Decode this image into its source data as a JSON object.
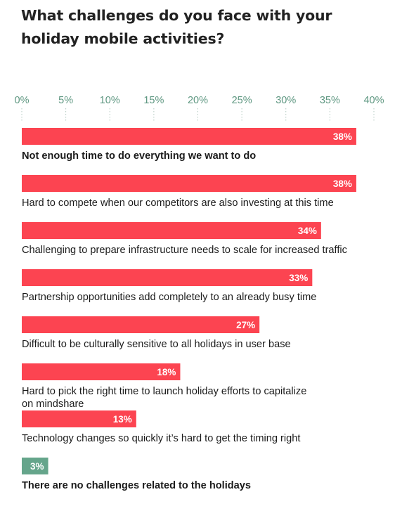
{
  "chart_data": {
    "type": "bar",
    "orientation": "horizontal",
    "title": "What challenges do you face with your holiday mobile activities?",
    "x_ticks": [
      "0%",
      "5%",
      "10%",
      "15%",
      "20%",
      "25%",
      "30%",
      "35%",
      "40%"
    ],
    "xlim": [
      0,
      40
    ],
    "grid": false,
    "colors": {
      "bar": "#fc4451",
      "bar_highlight": "#65a58b",
      "tick_text": "#5e9781",
      "tick_mark": "#b3c9c0",
      "title": "#222222",
      "label": "#1b1b1b"
    },
    "categories": [
      {
        "label": "Not enough time to do everything we want to do",
        "label_lines": [
          [
            {
              "text": "Not enough time to do everything we want to do",
              "bold": true
            }
          ]
        ],
        "value": 38,
        "value_label": "38%",
        "highlight": false
      },
      {
        "label": "Hard to compete when our competitors are also investing at this time",
        "label_lines": [
          [
            {
              "text": "Hard to compete when our competitors are also investing at this time",
              "bold": false
            }
          ]
        ],
        "value": 38,
        "value_label": "38%",
        "highlight": false
      },
      {
        "label": "Challenging to prepare infrastructure needs to scale for increased traffic",
        "label_lines": [
          [
            {
              "text": "Challenging to prepare infrastructure needs to scale for increased traffic",
              "bold": false
            }
          ]
        ],
        "value": 34,
        "value_label": "34%",
        "highlight": false
      },
      {
        "label": "Partnership opportunities add completely to an already busy time",
        "label_lines": [
          [
            {
              "text": "Partnership opportunities add completely to an already busy time",
              "bold": false
            }
          ]
        ],
        "value": 33,
        "value_label": "33%",
        "highlight": false
      },
      {
        "label": "Difficult to be culturally sensitive to all holidays in user base",
        "label_lines": [
          [
            {
              "text": "Difficult to be culturally sensitive to all holidays in user base",
              "bold": false
            }
          ]
        ],
        "value": 27,
        "value_label": "27%",
        "highlight": false
      },
      {
        "label": "Hard to pick the right time to launch holiday efforts to capitalize on mindshare",
        "label_lines": [
          [
            {
              "text": "Hard to pick the right time to launch holiday efforts to capitalize",
              "bold": false
            }
          ],
          [
            {
              "text": "on mindshare",
              "bold": false
            }
          ]
        ],
        "value": 18,
        "value_label": "18%",
        "highlight": false
      },
      {
        "label": "Technology changes so quickly it’s hard to get the timing right",
        "label_lines": [
          [
            {
              "text": "Technology changes so quickly it’s hard to get the timing right",
              "bold": false
            }
          ]
        ],
        "value": 13,
        "value_label": "13%",
        "highlight": false
      },
      {
        "label": "There are no challenges related to the holidays",
        "label_lines": [
          [
            {
              "text": "There are ",
              "bold": true
            },
            {
              "text": "no challenges",
              "bold": true
            },
            {
              "text": " related to the holidays",
              "bold": true
            }
          ]
        ],
        "value": 3,
        "value_label": "3%",
        "highlight": true
      }
    ]
  }
}
